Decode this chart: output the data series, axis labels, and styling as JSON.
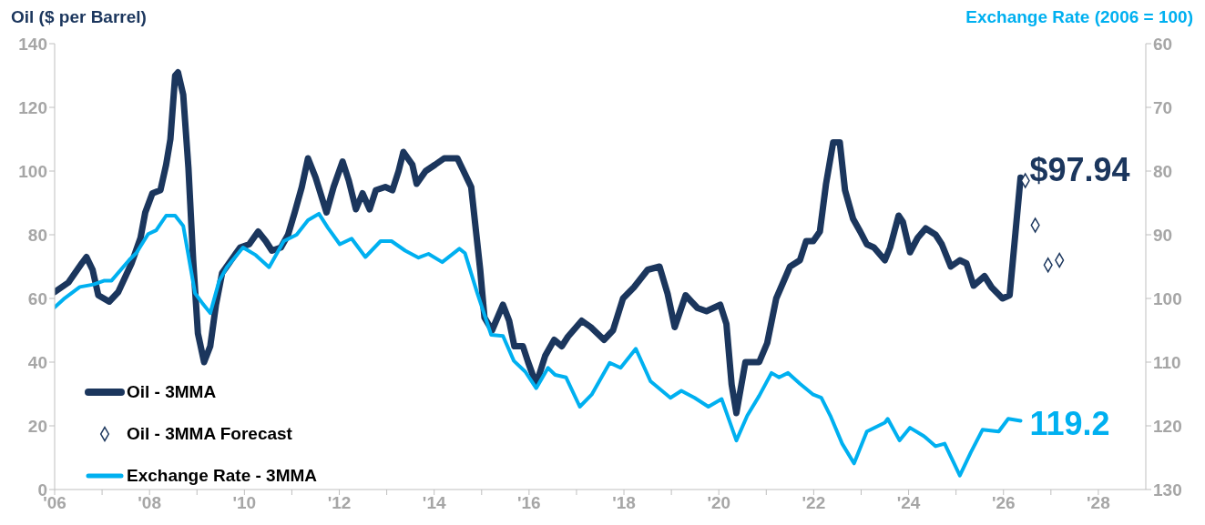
{
  "chart_data": {
    "type": "line",
    "ylabel": "Oil ($ per Barrel)",
    "y2label": "Exchange Rate (2006 = 100)",
    "xlim": [
      2006,
      2029
    ],
    "xticks": [
      {
        "value": 2006,
        "label": "'06"
      },
      {
        "value": 2007,
        "label": null
      },
      {
        "value": 2008,
        "label": "'08"
      },
      {
        "value": 2009,
        "label": null
      },
      {
        "value": 2010,
        "label": "'10"
      },
      {
        "value": 2011,
        "label": null
      },
      {
        "value": 2012,
        "label": "'12"
      },
      {
        "value": 2013,
        "label": null
      },
      {
        "value": 2014,
        "label": "'14"
      },
      {
        "value": 2015,
        "label": null
      },
      {
        "value": 2016,
        "label": "'16"
      },
      {
        "value": 2017,
        "label": null
      },
      {
        "value": 2018,
        "label": "'18"
      },
      {
        "value": 2019,
        "label": null
      },
      {
        "value": 2020,
        "label": "'20"
      },
      {
        "value": 2021,
        "label": null
      },
      {
        "value": 2022,
        "label": "'22"
      },
      {
        "value": 2023,
        "label": null
      },
      {
        "value": 2024,
        "label": "'24"
      },
      {
        "value": 2025,
        "label": null
      },
      {
        "value": 2026,
        "label": "'26"
      },
      {
        "value": 2027,
        "label": null
      },
      {
        "value": 2028,
        "label": "'28"
      }
    ],
    "ylim": [
      0,
      140
    ],
    "yticks": [
      0,
      20,
      40,
      60,
      80,
      100,
      120,
      140
    ],
    "y2lim": [
      130,
      60
    ],
    "y2ticks": [
      60,
      70,
      80,
      90,
      100,
      110,
      120,
      130
    ],
    "grid": false,
    "legend": "bottom left",
    "series": [
      {
        "name": "Oil - 3MMA",
        "color": "#1b365d",
        "x": [
          2006.0,
          2006.29,
          2006.57,
          2006.67,
          2006.8,
          2006.92,
          2007.15,
          2007.34,
          2007.62,
          2007.81,
          2007.91,
          2008.06,
          2008.23,
          2008.35,
          2008.44,
          2008.54,
          2008.6,
          2008.71,
          2008.82,
          2008.92,
          2009.02,
          2009.15,
          2009.28,
          2009.4,
          2009.53,
          2009.72,
          2009.91,
          2010.1,
          2010.29,
          2010.45,
          2010.58,
          2010.77,
          2010.92,
          2011.06,
          2011.21,
          2011.34,
          2011.5,
          2011.73,
          2011.88,
          2012.07,
          2012.2,
          2012.35,
          2012.49,
          2012.64,
          2012.77,
          2012.97,
          2013.12,
          2013.25,
          2013.35,
          2013.54,
          2013.63,
          2013.82,
          2014.02,
          2014.21,
          2014.49,
          2014.78,
          2014.97,
          2015.06,
          2015.22,
          2015.45,
          2015.58,
          2015.69,
          2015.87,
          2015.98,
          2016.15,
          2016.34,
          2016.53,
          2016.69,
          2016.82,
          2017.11,
          2017.3,
          2017.58,
          2017.77,
          2017.98,
          2018.21,
          2018.5,
          2018.75,
          2018.92,
          2019.07,
          2019.3,
          2019.55,
          2019.74,
          2020.03,
          2020.16,
          2020.27,
          2020.37,
          2020.56,
          2020.85,
          2021.02,
          2021.21,
          2021.5,
          2021.71,
          2021.84,
          2021.99,
          2022.13,
          2022.26,
          2022.41,
          2022.55,
          2022.66,
          2022.83,
          2022.98,
          2023.12,
          2023.27,
          2023.5,
          2023.61,
          2023.79,
          2023.88,
          2024.03,
          2024.19,
          2024.36,
          2024.57,
          2024.7,
          2024.89,
          2025.08,
          2025.22,
          2025.37,
          2025.6,
          2025.75,
          2025.98,
          2026.13,
          2026.23,
          2026.36
        ],
        "values": [
          62,
          65,
          71,
          73,
          69,
          61,
          59,
          62,
          71,
          79,
          87,
          93,
          94,
          102,
          110,
          130,
          131,
          124,
          101,
          72,
          49,
          40,
          45,
          58,
          68,
          72,
          76,
          77,
          81,
          78,
          75,
          76,
          80,
          87,
          95,
          104,
          98,
          87,
          95,
          103,
          97,
          88,
          93,
          88,
          94,
          95,
          94,
          100,
          106,
          102,
          96,
          100,
          102,
          104,
          104,
          95,
          69,
          54,
          50,
          58,
          53,
          45,
          45,
          40,
          33,
          42,
          47,
          45,
          48,
          53,
          51,
          47,
          50,
          60,
          63.5,
          69,
          70,
          61.5,
          51,
          61,
          57,
          56,
          58,
          52,
          33,
          24,
          40,
          40,
          46,
          60,
          70,
          72,
          78,
          78,
          81,
          96,
          109,
          109,
          94,
          85,
          81,
          77,
          76,
          72,
          76,
          86,
          84,
          74.5,
          79,
          82,
          80,
          77,
          70,
          72,
          71,
          64,
          67,
          63.5,
          60,
          61,
          77,
          97.94
        ],
        "value_labels": [
          null,
          null,
          null,
          null,
          null,
          null,
          null,
          null,
          null,
          null,
          null,
          null,
          null,
          null,
          null,
          null,
          null,
          null,
          null,
          null,
          null,
          null,
          null,
          null,
          null,
          null,
          null,
          null,
          null,
          null,
          null,
          null,
          null,
          null,
          null,
          null,
          null,
          null,
          null,
          null,
          null,
          null,
          null,
          null,
          null,
          null,
          null,
          null,
          null,
          null,
          null,
          null,
          null,
          null,
          null,
          null,
          null,
          null,
          null,
          null,
          null,
          null,
          null,
          null,
          null,
          null,
          null,
          null,
          null,
          null,
          null,
          null,
          null,
          null,
          null,
          null,
          null,
          null,
          null,
          null,
          null,
          null,
          null,
          null,
          null,
          null,
          null,
          null,
          null,
          null,
          null,
          null,
          null,
          null,
          null,
          null,
          null,
          null,
          null,
          null,
          null,
          null,
          null,
          null,
          null,
          null,
          null,
          null,
          null,
          null,
          null,
          null,
          null,
          null,
          null,
          null,
          null,
          null,
          null,
          null,
          null,
          "$97.94"
        ]
      },
      {
        "name": "Oil - 3MMA Forecast",
        "type": "scatter",
        "marker": "diamond",
        "color": "#1b365d",
        "x": [
          2026.46,
          2026.67,
          2026.94,
          2027.18
        ],
        "values": [
          97,
          83,
          70.5,
          72
        ]
      },
      {
        "name": "Exchange Rate - 3MMA",
        "type": "line",
        "axis": "y2",
        "color": "#00b0f0",
        "x": [
          2006.0,
          2006.19,
          2006.53,
          2006.82,
          2007.05,
          2007.2,
          2007.58,
          2007.72,
          2007.97,
          2008.14,
          2008.35,
          2008.54,
          2008.71,
          2008.96,
          2009.11,
          2009.28,
          2009.47,
          2009.63,
          2009.97,
          2010.24,
          2010.52,
          2010.83,
          2011.1,
          2011.34,
          2011.57,
          2011.76,
          2012.01,
          2012.26,
          2012.55,
          2012.87,
          2013.1,
          2013.39,
          2013.67,
          2013.88,
          2014.17,
          2014.53,
          2014.65,
          2014.91,
          2015.2,
          2015.45,
          2015.68,
          2015.92,
          2016.15,
          2016.4,
          2016.55,
          2016.78,
          2017.07,
          2017.32,
          2017.7,
          2017.93,
          2018.25,
          2018.56,
          2018.98,
          2019.21,
          2019.49,
          2019.78,
          2020.06,
          2020.37,
          2020.6,
          2020.85,
          2021.11,
          2021.27,
          2021.46,
          2021.71,
          2021.99,
          2022.16,
          2022.35,
          2022.6,
          2022.85,
          2023.12,
          2023.5,
          2023.56,
          2023.81,
          2024.03,
          2024.32,
          2024.57,
          2024.76,
          2025.08,
          2025.31,
          2025.56,
          2025.9,
          2026.1,
          2026.36
        ],
        "values": [
          101.4,
          100.1,
          98.2,
          97.8,
          97.2,
          97.2,
          93.9,
          92.9,
          89.9,
          89.3,
          87,
          87,
          88.6,
          99.2,
          100.7,
          102.3,
          97.2,
          95.1,
          92,
          93.2,
          95.1,
          91,
          90,
          87.7,
          86.7,
          88.9,
          91.5,
          90.6,
          93.5,
          91,
          91,
          92.5,
          93.6,
          93,
          94.3,
          92.2,
          92.9,
          99.2,
          105.7,
          105.9,
          109.8,
          111.5,
          114.1,
          110.9,
          112,
          112.4,
          117,
          115.1,
          110.1,
          110.9,
          107.9,
          113,
          115.6,
          114.5,
          115.6,
          117,
          115.8,
          122.3,
          118.4,
          115.3,
          111.7,
          112.4,
          111.7,
          113.4,
          115.1,
          115.6,
          118.4,
          122.8,
          125.9,
          120.9,
          119.5,
          118.9,
          122.3,
          120.3,
          121.6,
          123.2,
          122.8,
          127.8,
          124.2,
          120.6,
          120.9,
          118.9,
          119.2
        ],
        "value_labels": [
          null,
          null,
          null,
          null,
          null,
          null,
          null,
          null,
          null,
          null,
          null,
          null,
          null,
          null,
          null,
          null,
          null,
          null,
          null,
          null,
          null,
          null,
          null,
          null,
          null,
          null,
          null,
          null,
          null,
          null,
          null,
          null,
          null,
          null,
          null,
          null,
          null,
          null,
          null,
          null,
          null,
          null,
          null,
          null,
          null,
          null,
          null,
          null,
          null,
          null,
          null,
          null,
          null,
          null,
          null,
          null,
          null,
          null,
          null,
          null,
          null,
          null,
          null,
          null,
          null,
          null,
          null,
          null,
          null,
          null,
          null,
          null,
          null,
          null,
          null,
          null,
          null,
          null,
          null,
          null,
          null,
          null,
          "119.2"
        ]
      }
    ]
  }
}
